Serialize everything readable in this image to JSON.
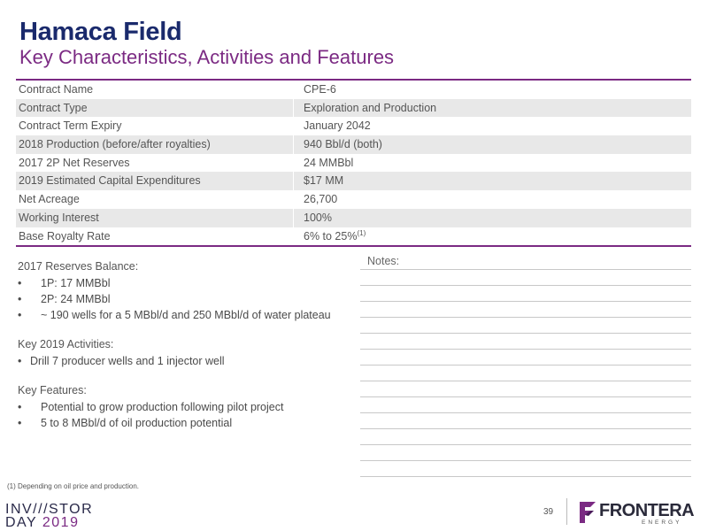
{
  "header": {
    "title": "Hamaca Field",
    "subtitle": "Key Characteristics, Activities and Features"
  },
  "table": {
    "rows": [
      {
        "label": "Contract Name",
        "value": "CPE-6"
      },
      {
        "label": "Contract Type",
        "value": "Exploration and Production"
      },
      {
        "label": "Contract Term Expiry",
        "value": "January 2042"
      },
      {
        "label": "2018 Production (before/after royalties)",
        "value": "940 Bbl/d (both)"
      },
      {
        "label": "2017 2P Net Reserves",
        "value": "24 MMBbl"
      },
      {
        "label": "2019 Estimated Capital Expenditures",
        "value": "$17 MM"
      },
      {
        "label": "Net Acreage",
        "value": "26,700"
      },
      {
        "label": "Working Interest",
        "value": "100%"
      },
      {
        "label": "Base Royalty Rate",
        "value": "6% to 25%",
        "sup": "(1)"
      }
    ]
  },
  "sections": {
    "reserves": {
      "heading": "2017 Reserves Balance:",
      "items": [
        "1P: 17 MMBbl",
        "2P: 24 MMBbl",
        "~ 190 wells for a 5 MBbl/d and 250 MBbl/d of water plateau"
      ]
    },
    "activities": {
      "heading": "Key 2019 Activities:",
      "items": [
        "Drill 7 producer wells and 1 injector well"
      ]
    },
    "features": {
      "heading": "Key Features:",
      "items": [
        "Potential to grow production following pilot project",
        "5 to 8 MBbl/d of oil production potential"
      ]
    }
  },
  "notes": {
    "label": "Notes:"
  },
  "footnote": "(1)  Depending on oil price and production.",
  "footer": {
    "event_line1": "INV///STOR",
    "event_line2": "DAY",
    "event_year": "2019",
    "page_number": "39",
    "brand_name": "FRONTERA",
    "brand_sub": "ENERGY",
    "brand_color": "#7b2a83"
  },
  "colors": {
    "title": "#1a2a6c",
    "accent": "#7b2a83",
    "row_alt": "#e8e8e8"
  },
  "bullet_glyph": "•"
}
